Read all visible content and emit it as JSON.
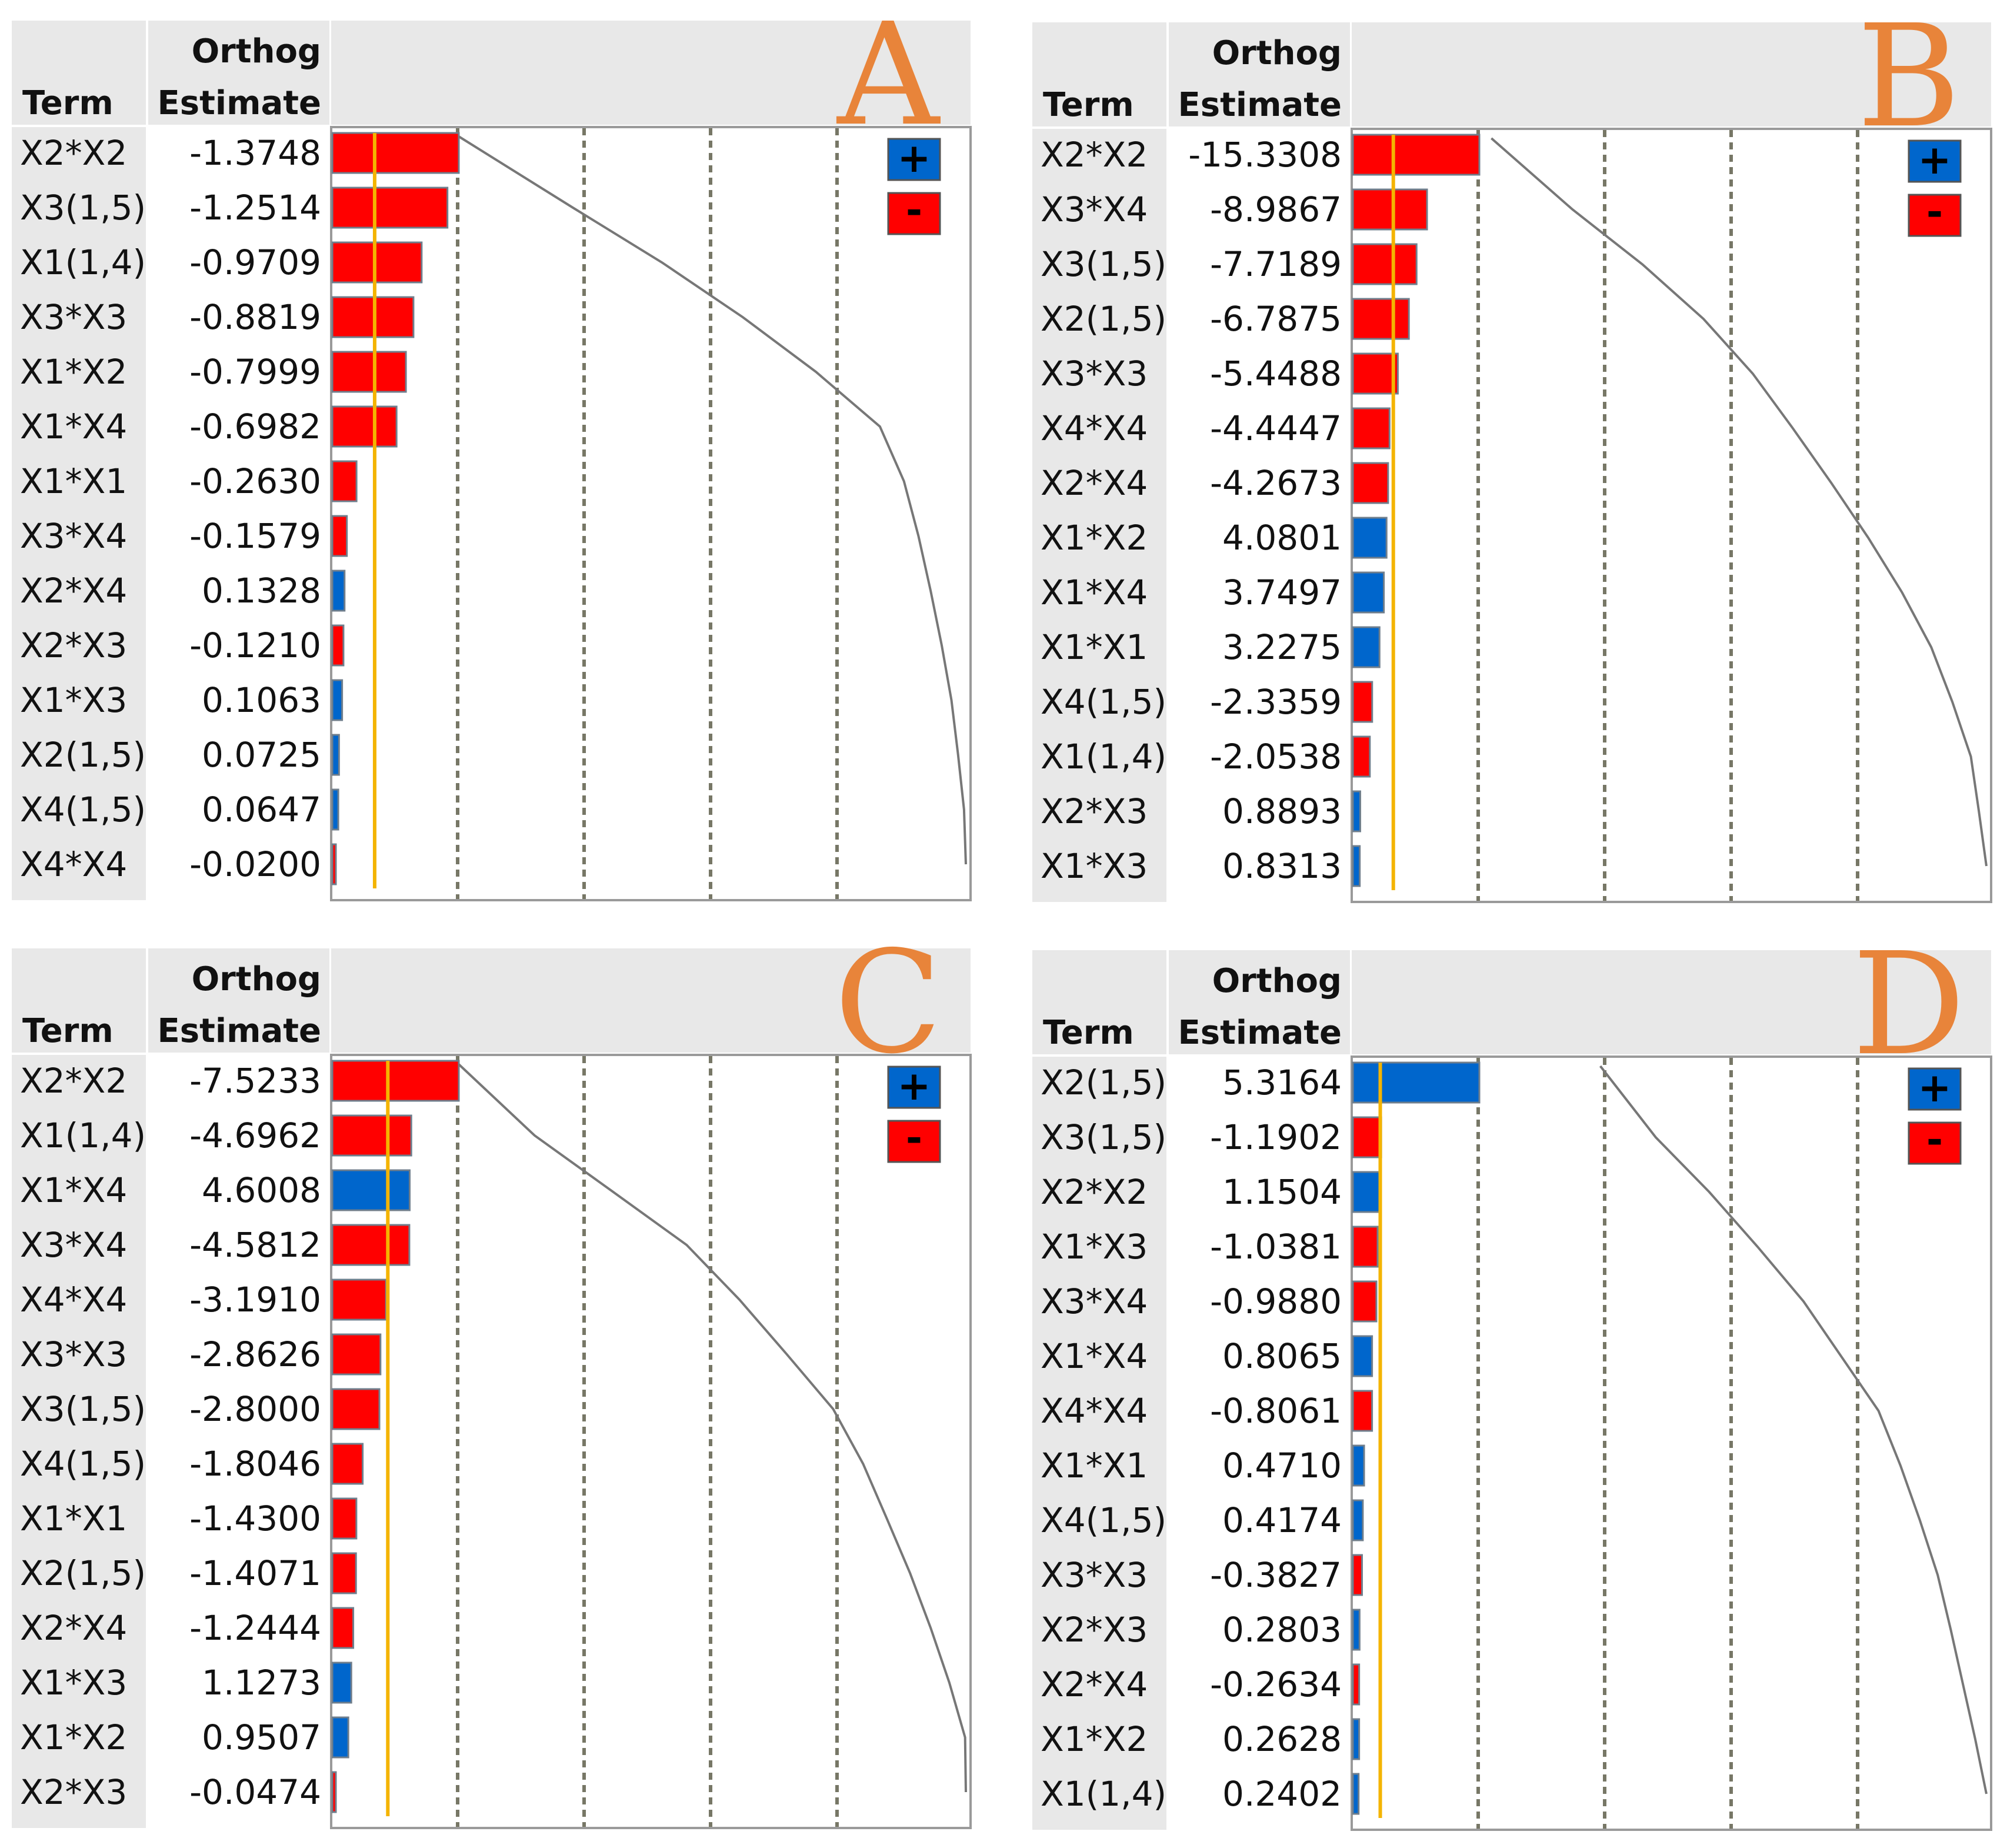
{
  "chart_data": [
    {
      "type": "bar",
      "panel": "A",
      "headers": {
        "term": "Term",
        "estimate_line1": "Orthog",
        "estimate_line2": "Estimate"
      },
      "legend": [
        "+",
        "-"
      ],
      "positive_color": "#0066cc",
      "negative_color": "#ff0000",
      "rows": [
        {
          "term": "X2*X2",
          "label": "-1.3748",
          "value": -1.3748
        },
        {
          "term": "X3(1,5)",
          "label": "-1.2514",
          "value": -1.2514
        },
        {
          "term": "X1(1,4)",
          "label": "-0.9709",
          "value": -0.9709
        },
        {
          "term": "X3*X3",
          "label": "-0.8819",
          "value": -0.8819
        },
        {
          "term": "X1*X2",
          "label": "-0.7999",
          "value": -0.7999
        },
        {
          "term": "X1*X4",
          "label": "-0.6982",
          "value": -0.6982
        },
        {
          "term": "X1*X1",
          "label": "-0.2630",
          "value": -0.263
        },
        {
          "term": "X3*X4",
          "label": "-0.1579",
          "value": -0.1579
        },
        {
          "term": "X2*X4",
          "label": "0.1328",
          "value": 0.1328
        },
        {
          "term": "X2*X3",
          "label": "-0.1210",
          "value": -0.121
        },
        {
          "term": "X1*X3",
          "label": "0.1063",
          "value": 0.1063
        },
        {
          "term": "X2(1,5)",
          "label": "0.0725",
          "value": 0.0725
        },
        {
          "term": "X4(1,5)",
          "label": "0.0647",
          "value": 0.0647
        },
        {
          "term": "X4*X4",
          "label": "-0.0200",
          "value": -0.02
        }
      ],
      "reference_value": 0.46
    },
    {
      "type": "bar",
      "panel": "B",
      "headers": {
        "term": "Term",
        "estimate_line1": "Orthog",
        "estimate_line2": "Estimate"
      },
      "legend": [
        "+",
        "-"
      ],
      "positive_color": "#0066cc",
      "negative_color": "#ff0000",
      "rows": [
        {
          "term": "X2*X2",
          "label": "-15.3308",
          "value": -15.3308
        },
        {
          "term": "X3*X4",
          "label": "-8.9867",
          "value": -8.9867
        },
        {
          "term": "X3(1,5)",
          "label": "-7.7189",
          "value": -7.7189
        },
        {
          "term": "X2(1,5)",
          "label": "-6.7875",
          "value": -6.7875
        },
        {
          "term": "X3*X3",
          "label": "-5.4488",
          "value": -5.4488
        },
        {
          "term": "X4*X4",
          "label": "-4.4447",
          "value": -4.4447
        },
        {
          "term": "X2*X4",
          "label": "-4.2673",
          "value": -4.2673
        },
        {
          "term": "X1*X2",
          "label": "4.0801",
          "value": 4.0801
        },
        {
          "term": "X1*X4",
          "label": "3.7497",
          "value": 3.7497
        },
        {
          "term": "X1*X1",
          "label": "3.2275",
          "value": 3.2275
        },
        {
          "term": "X4(1,5)",
          "label": "-2.3359",
          "value": -2.3359
        },
        {
          "term": "X1(1,4)",
          "label": "-2.0538",
          "value": -2.0538
        },
        {
          "term": "X2*X3",
          "label": "0.8893",
          "value": 0.8893
        },
        {
          "term": "X1*X3",
          "label": "0.8313",
          "value": 0.8313
        }
      ],
      "reference_value": 4.9
    },
    {
      "type": "bar",
      "panel": "C",
      "headers": {
        "term": "Term",
        "estimate_line1": "Orthog",
        "estimate_line2": "Estimate"
      },
      "legend": [
        "+",
        "-"
      ],
      "positive_color": "#0066cc",
      "negative_color": "#ff0000",
      "rows": [
        {
          "term": "X2*X2",
          "label": "-7.5233",
          "value": -7.5233
        },
        {
          "term": "X1(1,4)",
          "label": "-4.6962",
          "value": -4.6962
        },
        {
          "term": "X1*X4",
          "label": "4.6008",
          "value": 4.6008
        },
        {
          "term": "X3*X4",
          "label": "-4.5812",
          "value": -4.5812
        },
        {
          "term": "X4*X4",
          "label": "-3.1910",
          "value": -3.191
        },
        {
          "term": "X3*X3",
          "label": "-2.8626",
          "value": -2.8626
        },
        {
          "term": "X3(1,5)",
          "label": "-2.8000",
          "value": -2.8
        },
        {
          "term": "X4(1,5)",
          "label": "-1.8046",
          "value": -1.8046
        },
        {
          "term": "X1*X1",
          "label": "-1.4300",
          "value": -1.43
        },
        {
          "term": "X2(1,5)",
          "label": "-1.4071",
          "value": -1.4071
        },
        {
          "term": "X2*X4",
          "label": "-1.2444",
          "value": -1.2444
        },
        {
          "term": "X1*X3",
          "label": "1.1273",
          "value": 1.1273
        },
        {
          "term": "X1*X2",
          "label": "0.9507",
          "value": 0.9507
        },
        {
          "term": "X2*X3",
          "label": "-0.0474",
          "value": -0.0474
        }
      ],
      "reference_value": 3.3
    },
    {
      "type": "bar",
      "panel": "D",
      "headers": {
        "term": "Term",
        "estimate_line1": "Orthog",
        "estimate_line2": "Estimate"
      },
      "legend": [
        "+",
        "-"
      ],
      "positive_color": "#0066cc",
      "negative_color": "#ff0000",
      "rows": [
        {
          "term": "X2(1,5)",
          "label": "5.3164",
          "value": 5.3164
        },
        {
          "term": "X3(1,5)",
          "label": "-1.1902",
          "value": -1.1902
        },
        {
          "term": "X2*X2",
          "label": "1.1504",
          "value": 1.1504
        },
        {
          "term": "X1*X3",
          "label": "-1.0381",
          "value": -1.0381
        },
        {
          "term": "X3*X4",
          "label": "-0.9880",
          "value": -0.988
        },
        {
          "term": "X1*X4",
          "label": "0.8065",
          "value": 0.8065
        },
        {
          "term": "X4*X4",
          "label": "-0.8061",
          "value": -0.8061
        },
        {
          "term": "X1*X1",
          "label": "0.4710",
          "value": 0.471
        },
        {
          "term": "X4(1,5)",
          "label": "0.4174",
          "value": 0.4174
        },
        {
          "term": "X3*X3",
          "label": "-0.3827",
          "value": -0.3827
        },
        {
          "term": "X2*X3",
          "label": "0.2803",
          "value": 0.2803
        },
        {
          "term": "X2*X4",
          "label": "-0.2634",
          "value": -0.2634
        },
        {
          "term": "X1*X2",
          "label": "0.2628",
          "value": 0.2628
        },
        {
          "term": "X1(1,4)",
          "label": "0.2402",
          "value": 0.2402
        }
      ],
      "reference_value": 1.15
    }
  ]
}
